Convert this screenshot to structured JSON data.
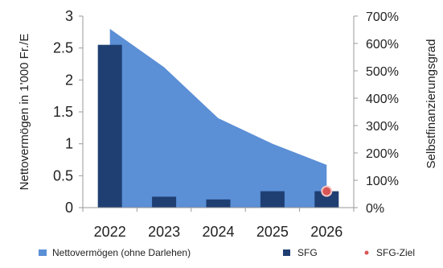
{
  "chart_data": {
    "type": "bar",
    "categories": [
      "2022",
      "2023",
      "2024",
      "2025",
      "2026"
    ],
    "y_left": {
      "label": "Nettovermögen in 1'000 Fr./E",
      "ylim": [
        0,
        3
      ],
      "ticks": [
        "0",
        "0.5",
        "1",
        "1.5",
        "2",
        "2.5",
        "3"
      ]
    },
    "y_right": {
      "label": "Selbstfinanzierungsgrad",
      "ylim": [
        0,
        700
      ],
      "ticks": [
        "0%",
        "100%",
        "200%",
        "300%",
        "400%",
        "500%",
        "600%",
        "700%"
      ]
    },
    "series": [
      {
        "name": "Nettovermögen (ohne Darlehen)",
        "type": "area",
        "axis": "left",
        "color": "#5b8fd6",
        "values": [
          2.8,
          2.2,
          1.4,
          1.0,
          0.67
        ]
      },
      {
        "name": "SFG",
        "type": "bar",
        "axis": "right",
        "color": "#1f3f73",
        "values": [
          595,
          40,
          30,
          60,
          60
        ]
      },
      {
        "name": "SFG-Ziel",
        "type": "scatter",
        "axis": "right",
        "color": "#d95555",
        "points": [
          {
            "x": "2026",
            "y": 60
          }
        ]
      }
    ],
    "legend_position": "bottom",
    "grid": false
  }
}
